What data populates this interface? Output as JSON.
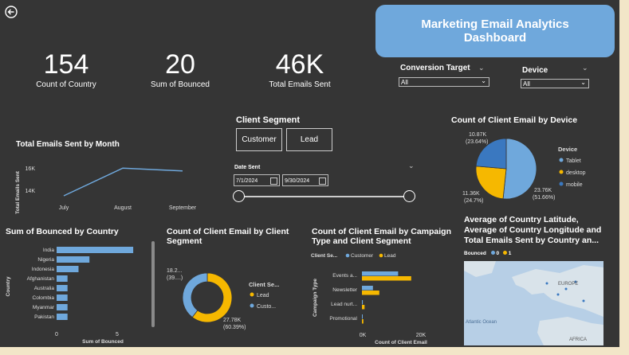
{
  "colors": {
    "accent": "#6fa8dc",
    "blue": "#6fa8dc",
    "darkblue": "#3a78c0",
    "yellow": "#f6b800",
    "bg": "#353535"
  },
  "header": {
    "title_line1": "Marketing Email Analytics",
    "title_line2": "Dashboard"
  },
  "kpis": [
    {
      "value": "154",
      "label": "Count of Country"
    },
    {
      "value": "20",
      "label": "Sum of Bounced"
    },
    {
      "value": "46K",
      "label": "Total Emails Sent"
    }
  ],
  "filters": {
    "conversion": {
      "label": "Conversion Target",
      "value": "All"
    },
    "device": {
      "label": "Device",
      "value": "All"
    }
  },
  "segment": {
    "title": "Client Segment",
    "options": [
      "Customer",
      "Lead"
    ]
  },
  "date": {
    "label": "Date Sent",
    "start": "7/1/2024",
    "end": "9/30/2024"
  },
  "charts": {
    "monthly": {
      "type": "line",
      "title": "Total Emails Sent by Month",
      "ylabel": "Total Emails Sent",
      "categories": [
        "July",
        "August",
        "September"
      ],
      "values": [
        13500,
        16400,
        16100
      ],
      "yticks": [
        "16K",
        "14K"
      ],
      "ylim": [
        13000,
        17500
      ]
    },
    "device": {
      "type": "pie",
      "title": "Count of Client Email by Device",
      "legend_title": "Device",
      "slices": [
        {
          "name": "Tablet",
          "value": 23760,
          "label": "23.76K",
          "pct": "(51.66%)"
        },
        {
          "name": "desktop",
          "value": 11360,
          "label": "11.36K",
          "pct": "(24.7%)"
        },
        {
          "name": "mobile",
          "value": 10870,
          "label": "10.87K",
          "pct": "(23.64%)"
        }
      ]
    },
    "bounced": {
      "type": "bar",
      "title": "Sum of Bounced by Country",
      "ylabel": "Country",
      "xlabel": "Sum of Bounced",
      "categories": [
        "India",
        "Nigeria",
        "Indonesia",
        "Afghanistan",
        "Australia",
        "Colombia",
        "Myanmar",
        "Pakistan"
      ],
      "values": [
        7,
        3,
        2,
        1,
        1,
        1,
        1,
        1
      ],
      "xticks": [
        "0",
        "5"
      ],
      "xlim": [
        0,
        7.5
      ]
    },
    "segment_donut": {
      "type": "pie",
      "title_line1": "Count of Client Email by Client",
      "title_line2": "Segment",
      "legend_title": "Client Se...",
      "slices": [
        {
          "name": "Lead",
          "value": 27780,
          "label": "27.78K",
          "pct": "(60.39%)"
        },
        {
          "name": "Custo...",
          "value": 18220,
          "label": "18.2...",
          "pct": "(39....)"
        }
      ]
    },
    "campaign": {
      "type": "bar",
      "title_line1": "Count of Client Email by Campaign",
      "title_line2": "Type and Client Segment",
      "legend_label": "Client Se...",
      "legend": [
        "Customer",
        "Lead"
      ],
      "ylabel": "Campaign Type",
      "xlabel": "Count of Client Email",
      "categories": [
        "Events a...",
        "Newsletter",
        "Lead nurt...",
        "Promotional"
      ],
      "series": [
        {
          "name": "Customer",
          "values": [
            12500,
            3800,
            300,
            200
          ]
        },
        {
          "name": "Lead",
          "values": [
            17000,
            6000,
            900,
            500
          ]
        }
      ],
      "xticks": [
        "0K",
        "20K"
      ],
      "xlim": [
        0,
        30000
      ]
    },
    "map": {
      "title_line1": "Average of Country Latitude,",
      "title_line2": "Average of Country Longitude and",
      "title_line3": "Total Emails Sent by Country an...",
      "legend_label": "Bounced",
      "legend": [
        "0",
        "1"
      ],
      "label_europe": "EUROPE",
      "label_ocean": "Atlantic Ocean",
      "label_africa": "AFRICA"
    }
  }
}
